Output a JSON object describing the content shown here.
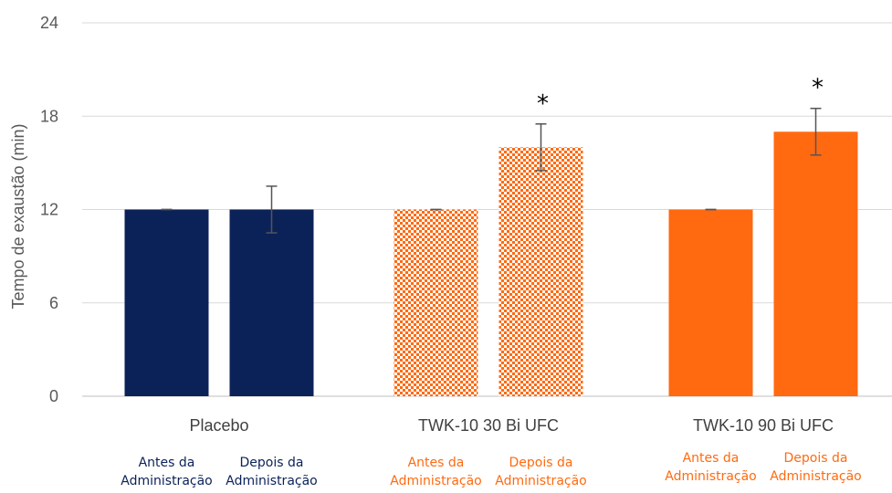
{
  "chart_data": {
    "type": "bar",
    "ylabel": "Tempo de exaustão (min)",
    "ylim": [
      0,
      24
    ],
    "yticks": [
      0,
      6,
      12,
      18,
      24
    ],
    "grid": true,
    "groups": [
      {
        "name": "Placebo",
        "color": "#0b2259",
        "pattern": "solid",
        "bars": [
          {
            "label": [
              "Antes da",
              "Administração"
            ],
            "value": 12,
            "error": 0
          },
          {
            "label": [
              "Depois da",
              "Administração"
            ],
            "value": 12,
            "error": 1.5
          }
        ]
      },
      {
        "name": "TWK-10 30 Bi UFC",
        "color": "#ff6a10",
        "pattern": "checkered",
        "bars": [
          {
            "label": [
              "Antes da",
              "Administração"
            ],
            "value": 12,
            "error": 0
          },
          {
            "label": [
              "Depois da",
              "Administração"
            ],
            "value": 16,
            "error": 1.5,
            "annotation": "*"
          }
        ]
      },
      {
        "name": "TWK-10 90 Bi UFC",
        "color": "#ff6a10",
        "pattern": "solid",
        "bars": [
          {
            "label": [
              "Antes da",
              "Administração"
            ],
            "value": 12,
            "error": 0
          },
          {
            "label": [
              "Depois da",
              "Administração"
            ],
            "value": 17,
            "error": 1.5,
            "annotation": "*"
          }
        ]
      }
    ]
  }
}
